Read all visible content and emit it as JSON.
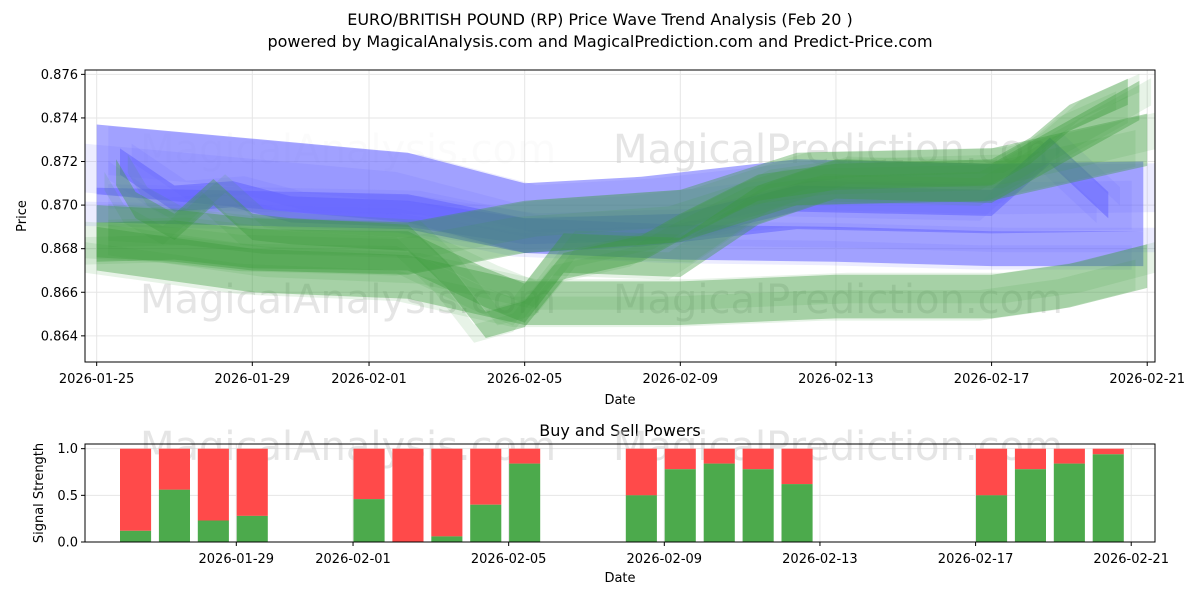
{
  "title_line1": "EURO/BRITISH POUND (RP) Price Wave Trend Analysis (Feb 20 )",
  "title_line2": "powered by MagicalAnalysis.com and MagicalPrediction.com and Predict-Price.com",
  "watermarks": {
    "left": "MagicalAnalysis.com",
    "right": "MagicalPrediction.com"
  },
  "colors": {
    "blue_band": "#6464ff",
    "green_band": "#3c9c3c",
    "buy": "#4caa4c",
    "sell": "#ff4a4a",
    "grid": "#e6e6e6"
  },
  "chart_data": [
    {
      "type": "area",
      "title": "",
      "xlabel": "Date",
      "ylabel": "Price",
      "grid": true,
      "x_tick_labels": [
        "2026-01-25",
        "2026-01-29",
        "2026-02-01",
        "2026-02-05",
        "2026-02-09",
        "2026-02-13",
        "2026-02-17",
        "2026-02-21"
      ],
      "x_tick_values": [
        0,
        4,
        7,
        11,
        15,
        19,
        23,
        27
      ],
      "xlim": [
        -0.3,
        27.2
      ],
      "ylim": [
        0.8628,
        0.8762
      ],
      "y_ticks": [
        0.864,
        0.866,
        0.868,
        0.87,
        0.872,
        0.874,
        0.876
      ],
      "y_tick_labels": [
        "0.864",
        "0.866",
        "0.868",
        "0.870",
        "0.872",
        "0.874",
        "0.876"
      ],
      "series": [
        {
          "name": "blue_wave_upper",
          "color": "blue",
          "points": [
            [
              0,
              0.8721
            ],
            [
              8,
              0.8708
            ],
            [
              11,
              0.8694
            ],
            [
              14,
              0.8697
            ],
            [
              18,
              0.8705
            ],
            [
              23,
              0.8703
            ],
            [
              26.9,
              0.8704
            ]
          ],
          "halfwidth": 0.0016
        },
        {
          "name": "blue_wave_lower",
          "color": "blue",
          "points": [
            [
              0,
              0.87
            ],
            [
              8,
              0.8697
            ],
            [
              11,
              0.8686
            ],
            [
              15,
              0.8683
            ],
            [
              19,
              0.8682
            ],
            [
              23,
              0.868
            ],
            [
              26.9,
              0.868
            ]
          ],
          "halfwidth": 0.0008
        },
        {
          "name": "blue_wave_mid",
          "color": "blue",
          "points": [
            [
              0.6,
              0.872
            ],
            [
              2,
              0.8703
            ],
            [
              3.5,
              0.8705
            ],
            [
              5,
              0.8698
            ],
            [
              8,
              0.8696
            ],
            [
              11,
              0.8688
            ],
            [
              15,
              0.869
            ],
            [
              18,
              0.8703
            ],
            [
              23,
              0.8701
            ],
            [
              24.5,
              0.8725
            ],
            [
              26,
              0.87
            ]
          ],
          "halfwidth": 0.0006
        },
        {
          "name": "green_wave_main",
          "color": "green",
          "points": [
            [
              0,
              0.8683
            ],
            [
              2,
              0.8684
            ],
            [
              4,
              0.868
            ],
            [
              8,
              0.8679
            ],
            [
              10,
              0.8662
            ],
            [
              11,
              0.8655
            ],
            [
              12,
              0.8678
            ],
            [
              15,
              0.8676
            ],
            [
              17,
              0.87
            ],
            [
              19,
              0.8712
            ],
            [
              23,
              0.871
            ],
            [
              25,
              0.873
            ],
            [
              26.8,
              0.8748
            ]
          ],
          "halfwidth": 0.0009
        },
        {
          "name": "green_wave_upper",
          "color": "green",
          "points": [
            [
              0,
              0.8688
            ],
            [
              2,
              0.8686
            ],
            [
              4,
              0.8682
            ],
            [
              8,
              0.868
            ],
            [
              11,
              0.869
            ],
            [
              15,
              0.8695
            ],
            [
              18,
              0.8712
            ],
            [
              23,
              0.8714
            ],
            [
              25,
              0.8722
            ],
            [
              27,
              0.873
            ]
          ],
          "halfwidth": 0.0012
        },
        {
          "name": "green_wave_lower",
          "color": "green",
          "points": [
            [
              0,
              0.868
            ],
            [
              4,
              0.867
            ],
            [
              8,
              0.8667
            ],
            [
              11,
              0.8655
            ],
            [
              15,
              0.8655
            ],
            [
              19,
              0.8658
            ],
            [
              23,
              0.8658
            ],
            [
              25,
              0.8663
            ],
            [
              27,
              0.8672
            ]
          ],
          "halfwidth": 0.001
        },
        {
          "name": "green_wave_pred",
          "color": "green",
          "points": [
            [
              0.5,
              0.8715
            ],
            [
              1,
              0.87
            ],
            [
              2,
              0.869
            ],
            [
              3,
              0.8706
            ],
            [
              4,
              0.869
            ],
            [
              5,
              0.8688
            ],
            [
              8,
              0.8685
            ],
            [
              9,
              0.8668
            ],
            [
              10,
              0.8645
            ],
            [
              11,
              0.865
            ],
            [
              12,
              0.8672
            ],
            [
              14,
              0.868
            ],
            [
              15,
              0.869
            ],
            [
              17,
              0.8708
            ],
            [
              19,
              0.8713
            ],
            [
              23,
              0.8715
            ],
            [
              24,
              0.8725
            ],
            [
              25,
              0.874
            ],
            [
              26.5,
              0.8752
            ]
          ],
          "halfwidth": 0.0006
        }
      ]
    },
    {
      "type": "bar",
      "title": "Buy and Sell Powers",
      "xlabel": "Date",
      "ylabel": "Signal Strength",
      "grid": true,
      "x_tick_labels": [
        "2026-01-29",
        "2026-02-01",
        "2026-02-05",
        "2026-02-09",
        "2026-02-13",
        "2026-02-17",
        "2026-02-21"
      ],
      "x_tick_values": [
        4,
        7,
        11,
        15,
        19,
        23,
        27
      ],
      "xlim": [
        -0.3,
        27.2
      ],
      "ylim": [
        0,
        1.05
      ],
      "y_ticks": [
        0,
        0.5,
        1
      ],
      "y_tick_labels": [
        "0.0",
        "0.5",
        "1.0"
      ],
      "buy_label": "Buy",
      "sell_label": "Sell",
      "bars": [
        {
          "x": 1,
          "buy": 0.12
        },
        {
          "x": 2,
          "buy": 0.56
        },
        {
          "x": 3,
          "buy": 0.23
        },
        {
          "x": 4,
          "buy": 0.28
        },
        {
          "x": 7,
          "buy": 0.46
        },
        {
          "x": 8,
          "buy": 0.0
        },
        {
          "x": 9,
          "buy": 0.06
        },
        {
          "x": 10,
          "buy": 0.4
        },
        {
          "x": 11,
          "buy": 0.84
        },
        {
          "x": 14,
          "buy": 0.5
        },
        {
          "x": 15,
          "buy": 0.78
        },
        {
          "x": 16,
          "buy": 0.84
        },
        {
          "x": 17,
          "buy": 0.78
        },
        {
          "x": 18,
          "buy": 0.62
        },
        {
          "x": 23,
          "buy": 0.5
        },
        {
          "x": 24,
          "buy": 0.78
        },
        {
          "x": 25,
          "buy": 0.84
        },
        {
          "x": 26,
          "buy": 0.94
        }
      ]
    }
  ]
}
